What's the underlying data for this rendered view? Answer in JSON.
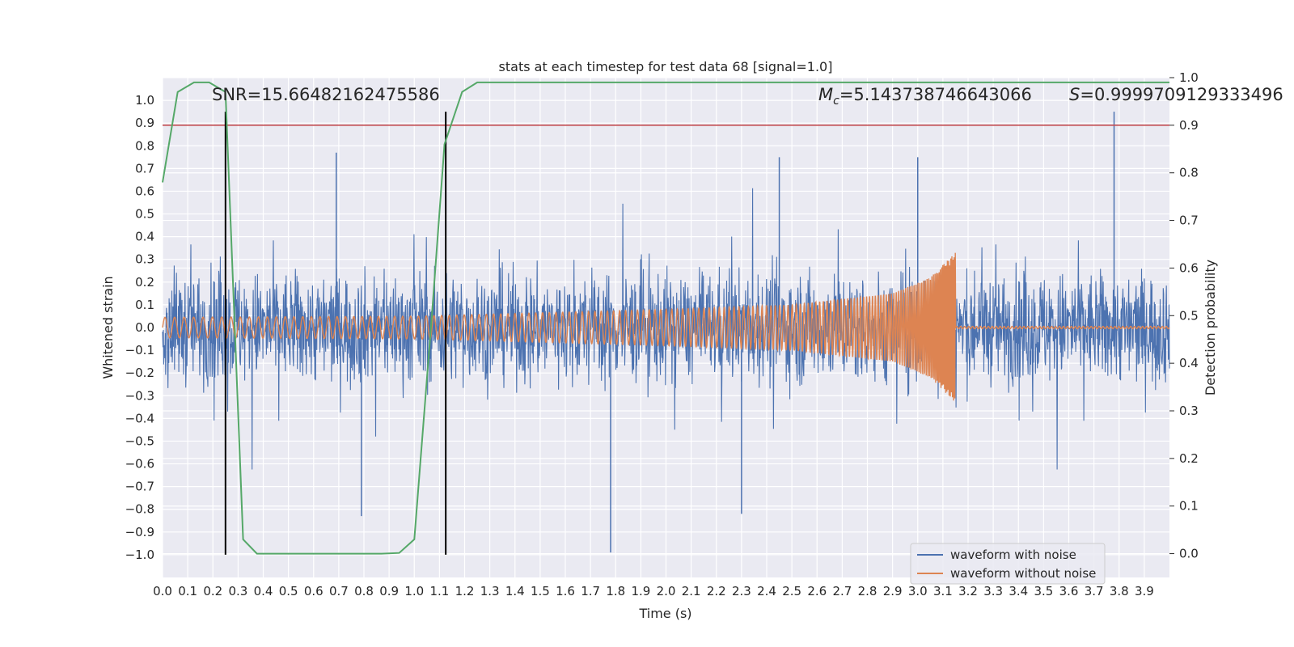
{
  "chart_data": {
    "type": "line",
    "title": "stats at each timestep for test data 68 [signal=1.0]",
    "xlabel": "Time (s)",
    "ylabel": "Whitened strain",
    "ylabel_right": "Detection probability",
    "xlim": [
      0.0,
      4.0
    ],
    "ylim": [
      -1.1,
      1.1
    ],
    "ylim_right": [
      -0.05,
      1.0
    ],
    "x_ticks": [
      0.0,
      0.1,
      0.2,
      0.3,
      0.4,
      0.5,
      0.6,
      0.7,
      0.8,
      0.9,
      1.0,
      1.1,
      1.2,
      1.3,
      1.4,
      1.5,
      1.6,
      1.7,
      1.8,
      1.9,
      2.0,
      2.1,
      2.2,
      2.3,
      2.4,
      2.5,
      2.6,
      2.7,
      2.8,
      2.9,
      3.0,
      3.1,
      3.2,
      3.3,
      3.4,
      3.5,
      3.6,
      3.7,
      3.8,
      3.9
    ],
    "y_ticks": [
      1.0,
      0.9,
      0.8,
      0.7,
      0.6,
      0.5,
      0.4,
      0.3,
      0.2,
      0.1,
      0.0,
      -0.1,
      -0.2,
      -0.3,
      -0.4,
      -0.5,
      -0.6,
      -0.7,
      -0.8,
      -0.9,
      -1.0
    ],
    "y_ticks_right": [
      1.0,
      0.9,
      0.8,
      0.7,
      0.6,
      0.5,
      0.4,
      0.3,
      0.2,
      0.1,
      0.0
    ],
    "annotations": {
      "snr": "SNR=15.66482162475586",
      "mc_symbol": "M",
      "mc_sub": "c",
      "mc_value": "=5.143738746643066",
      "s_symbol": "S",
      "s_value": "=0.9999709129333496"
    },
    "series": [
      {
        "name": "waveform with noise",
        "color": "#4c72b0",
        "description": "noisy whitened strain, amplitude roughly +/-0.5 with spikes to ~0.97",
        "extreme_points": [
          [
            0.69,
            0.77
          ],
          [
            0.79,
            -0.83
          ],
          [
            1.78,
            -0.99
          ],
          [
            2.45,
            0.75
          ],
          [
            2.3,
            -0.82
          ],
          [
            3.0,
            0.75
          ],
          [
            3.78,
            0.95
          ]
        ]
      },
      {
        "name": "waveform without noise",
        "color": "#dd8452",
        "description": "inspiral chirp with merger at ~3.15 s",
        "merger_time": 3.15,
        "envelope": [
          [
            0.0,
            0.045
          ],
          [
            1.0,
            0.05
          ],
          [
            2.0,
            0.08
          ],
          [
            2.5,
            0.1
          ],
          [
            2.9,
            0.15
          ],
          [
            3.05,
            0.22
          ],
          [
            3.15,
            0.33
          ]
        ]
      },
      {
        "name": "detection probability",
        "color": "#55a868",
        "axis": "right",
        "points": [
          [
            0.0,
            0.78
          ],
          [
            0.06,
            0.97
          ],
          [
            0.125,
            0.99
          ],
          [
            0.185,
            0.99
          ],
          [
            0.25,
            0.97
          ],
          [
            0.32,
            0.03
          ],
          [
            0.375,
            0.0
          ],
          [
            0.5,
            0.0
          ],
          [
            0.7,
            0.0
          ],
          [
            0.87,
            0.0
          ],
          [
            0.94,
            0.0015
          ],
          [
            1.0,
            0.03
          ],
          [
            1.07,
            0.5
          ],
          [
            1.12,
            0.86
          ],
          [
            1.19,
            0.97
          ],
          [
            1.25,
            0.99
          ],
          [
            2.0,
            0.99
          ],
          [
            3.0,
            0.99
          ],
          [
            4.0,
            0.99
          ]
        ]
      }
    ],
    "threshold_line": {
      "value": 0.9,
      "axis": "right",
      "color": "#c44e52"
    },
    "marker_lines": {
      "x": [
        0.25,
        1.125
      ],
      "ymin": -1.0,
      "ymax": 0.95,
      "color": "#000000"
    },
    "legend": {
      "position": "lower-right",
      "entries": [
        {
          "label": "waveform with noise",
          "color": "#4c72b0"
        },
        {
          "label": "waveform without noise",
          "color": "#dd8452"
        }
      ]
    }
  }
}
